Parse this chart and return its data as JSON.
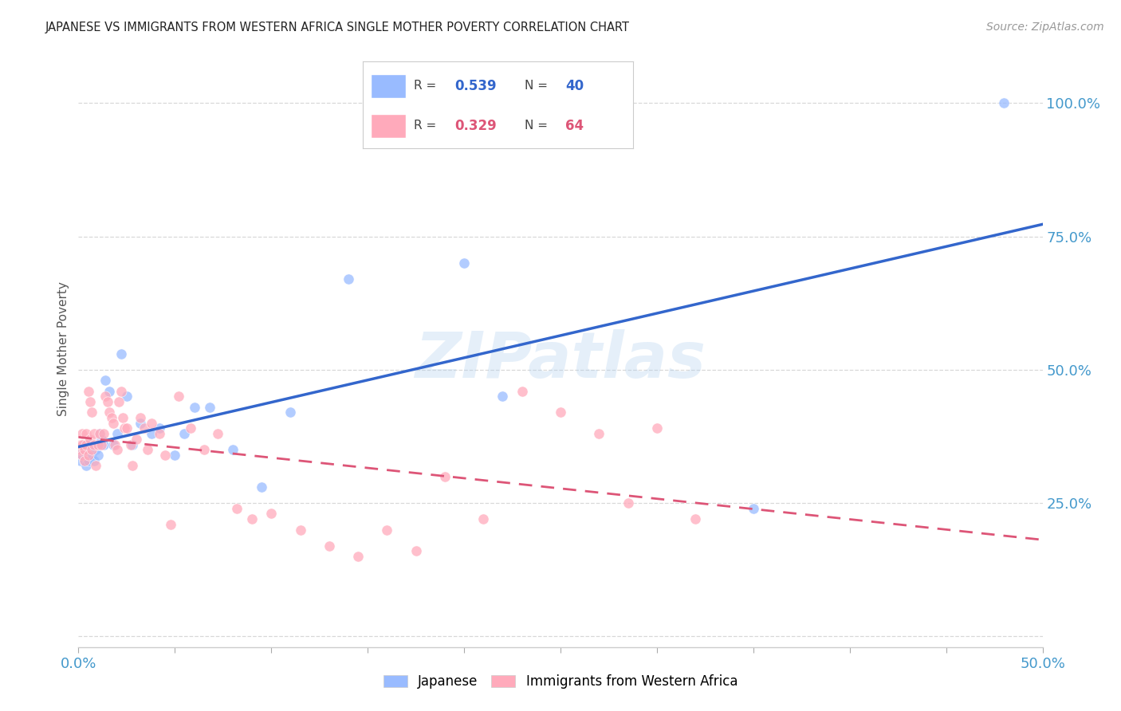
{
  "title": "JAPANESE VS IMMIGRANTS FROM WESTERN AFRICA SINGLE MOTHER POVERTY CORRELATION CHART",
  "source": "Source: ZipAtlas.com",
  "ylabel": "Single Mother Poverty",
  "xlim": [
    0.0,
    0.5
  ],
  "ylim": [
    -0.02,
    1.1
  ],
  "ytick_positions": [
    0.0,
    0.25,
    0.5,
    0.75,
    1.0
  ],
  "ytick_labels": [
    "",
    "25.0%",
    "50.0%",
    "75.0%",
    "100.0%"
  ],
  "xtick_positions": [
    0.0,
    0.05,
    0.1,
    0.15,
    0.2,
    0.25,
    0.3,
    0.35,
    0.4,
    0.45,
    0.5
  ],
  "xtick_labels": [
    "0.0%",
    "",
    "",
    "",
    "",
    "",
    "",
    "",
    "",
    "",
    "50.0%"
  ],
  "grid_color": "#d8d8d8",
  "background_color": "#ffffff",
  "japanese_scatter_color": "#99bbff",
  "western_scatter_color": "#ffaabb",
  "japanese_line_color": "#3366cc",
  "western_line_color": "#dd5577",
  "legend_R_japanese": "0.539",
  "legend_N_japanese": "40",
  "legend_R_western": "0.329",
  "legend_N_western": "64",
  "watermark": "ZIPatlas",
  "tick_color": "#4499cc",
  "jp_x": [
    0.001,
    0.002,
    0.002,
    0.003,
    0.003,
    0.004,
    0.004,
    0.005,
    0.005,
    0.006,
    0.007,
    0.008,
    0.009,
    0.01,
    0.01,
    0.011,
    0.012,
    0.013,
    0.014,
    0.016,
    0.018,
    0.02,
    0.022,
    0.025,
    0.028,
    0.032,
    0.038,
    0.042,
    0.05,
    0.055,
    0.06,
    0.068,
    0.08,
    0.095,
    0.11,
    0.14,
    0.2,
    0.22,
    0.35,
    0.48
  ],
  "jp_y": [
    0.33,
    0.34,
    0.35,
    0.36,
    0.33,
    0.34,
    0.32,
    0.33,
    0.35,
    0.36,
    0.34,
    0.33,
    0.35,
    0.34,
    0.36,
    0.38,
    0.37,
    0.36,
    0.48,
    0.46,
    0.36,
    0.38,
    0.53,
    0.45,
    0.36,
    0.4,
    0.38,
    0.39,
    0.34,
    0.38,
    0.43,
    0.43,
    0.35,
    0.28,
    0.42,
    0.67,
    0.7,
    0.45,
    0.24,
    1.0
  ],
  "wa_x": [
    0.001,
    0.001,
    0.002,
    0.002,
    0.002,
    0.003,
    0.003,
    0.004,
    0.004,
    0.005,
    0.005,
    0.006,
    0.006,
    0.007,
    0.007,
    0.008,
    0.008,
    0.009,
    0.01,
    0.011,
    0.012,
    0.013,
    0.014,
    0.015,
    0.016,
    0.017,
    0.018,
    0.019,
    0.02,
    0.021,
    0.022,
    0.023,
    0.024,
    0.025,
    0.027,
    0.028,
    0.03,
    0.032,
    0.034,
    0.036,
    0.038,
    0.042,
    0.045,
    0.048,
    0.052,
    0.058,
    0.065,
    0.072,
    0.082,
    0.09,
    0.1,
    0.115,
    0.13,
    0.145,
    0.16,
    0.175,
    0.19,
    0.21,
    0.23,
    0.25,
    0.27,
    0.285,
    0.3,
    0.32
  ],
  "wa_y": [
    0.35,
    0.36,
    0.34,
    0.36,
    0.38,
    0.33,
    0.35,
    0.36,
    0.38,
    0.34,
    0.46,
    0.37,
    0.44,
    0.35,
    0.42,
    0.36,
    0.38,
    0.32,
    0.36,
    0.38,
    0.36,
    0.38,
    0.45,
    0.44,
    0.42,
    0.41,
    0.4,
    0.36,
    0.35,
    0.44,
    0.46,
    0.41,
    0.39,
    0.39,
    0.36,
    0.32,
    0.37,
    0.41,
    0.39,
    0.35,
    0.4,
    0.38,
    0.34,
    0.21,
    0.45,
    0.39,
    0.35,
    0.38,
    0.24,
    0.22,
    0.23,
    0.2,
    0.17,
    0.15,
    0.2,
    0.16,
    0.3,
    0.22,
    0.46,
    0.42,
    0.38,
    0.25,
    0.39,
    0.22
  ]
}
